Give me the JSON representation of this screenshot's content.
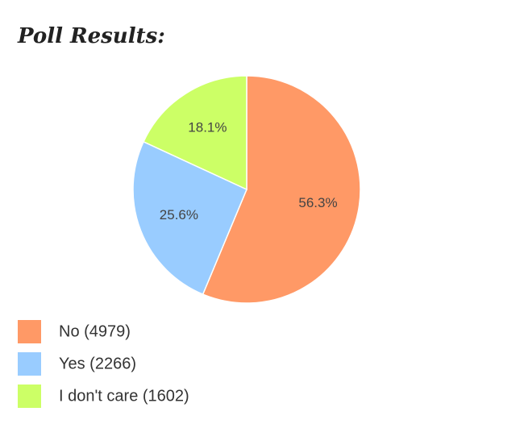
{
  "chart_data": {
    "type": "pie",
    "title": "Poll Results:",
    "categories": [
      "No (4979)",
      "Yes (2266)",
      "I don't care (1602)"
    ],
    "values": [
      56.3,
      25.6,
      18.1
    ],
    "value_labels": [
      "56.3%",
      "25.6%",
      "18.1%"
    ],
    "colors": [
      "#ff9966",
      "#99ccff",
      "#ccff66"
    ]
  }
}
